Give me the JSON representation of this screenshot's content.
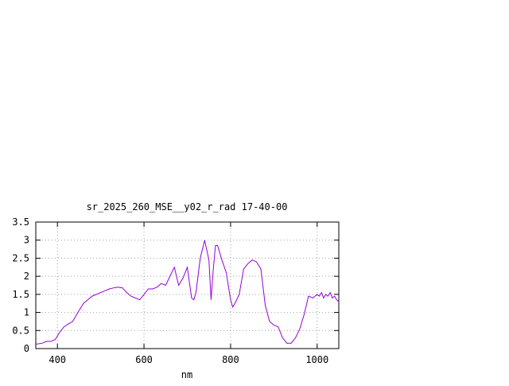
{
  "chart_data": {
    "type": "line",
    "title": "sr_2025_260_MSE__y02_r_rad 17-40-00",
    "xlabel": "nm",
    "ylabel": "",
    "xlim": [
      350,
      1050
    ],
    "ylim": [
      0,
      3.5
    ],
    "x_ticks": [
      400,
      600,
      800,
      1000
    ],
    "x_tick_labels": [
      "400",
      "600",
      "800",
      "1000"
    ],
    "y_ticks": [
      0,
      0.5,
      1,
      1.5,
      2,
      2.5,
      3,
      3.5
    ],
    "y_tick_labels": [
      "0",
      "0.5",
      "1",
      "1.5",
      "2",
      "2.5",
      "3",
      "3.5"
    ],
    "grid": true,
    "line_color": "#9400d3",
    "series": [
      {
        "x": [
          350,
          365,
          375,
          385,
          395,
          405,
          415,
          425,
          435,
          445,
          460,
          470,
          480,
          490,
          500,
          510,
          520,
          530,
          540,
          550,
          560,
          570,
          580,
          590,
          600,
          610,
          620,
          630,
          640,
          650,
          660,
          670,
          680,
          690,
          700,
          710,
          715,
          720,
          730,
          740,
          750,
          755,
          760,
          765,
          770,
          780,
          790,
          800,
          805,
          810,
          820,
          830,
          840,
          850,
          860,
          870,
          880,
          890,
          900,
          910,
          920,
          930,
          940,
          950,
          960,
          970,
          980,
          990,
          1000,
          1005,
          1010,
          1015,
          1020,
          1025,
          1030,
          1035,
          1040,
          1045,
          1050
        ],
        "y": [
          0.12,
          0.15,
          0.2,
          0.2,
          0.25,
          0.45,
          0.6,
          0.68,
          0.75,
          0.95,
          1.25,
          1.35,
          1.45,
          1.5,
          1.55,
          1.6,
          1.65,
          1.68,
          1.7,
          1.68,
          1.55,
          1.45,
          1.4,
          1.35,
          1.5,
          1.65,
          1.65,
          1.7,
          1.8,
          1.75,
          2.0,
          2.25,
          1.75,
          1.95,
          2.25,
          1.4,
          1.35,
          1.55,
          2.5,
          3.0,
          2.45,
          1.35,
          2.2,
          2.85,
          2.85,
          2.45,
          2.1,
          1.35,
          1.15,
          1.25,
          1.5,
          2.2,
          2.35,
          2.45,
          2.4,
          2.2,
          1.2,
          0.75,
          0.65,
          0.6,
          0.3,
          0.15,
          0.15,
          0.3,
          0.55,
          0.95,
          1.45,
          1.4,
          1.5,
          1.45,
          1.55,
          1.4,
          1.5,
          1.45,
          1.55,
          1.4,
          1.45,
          1.35,
          1.3
        ]
      }
    ]
  }
}
